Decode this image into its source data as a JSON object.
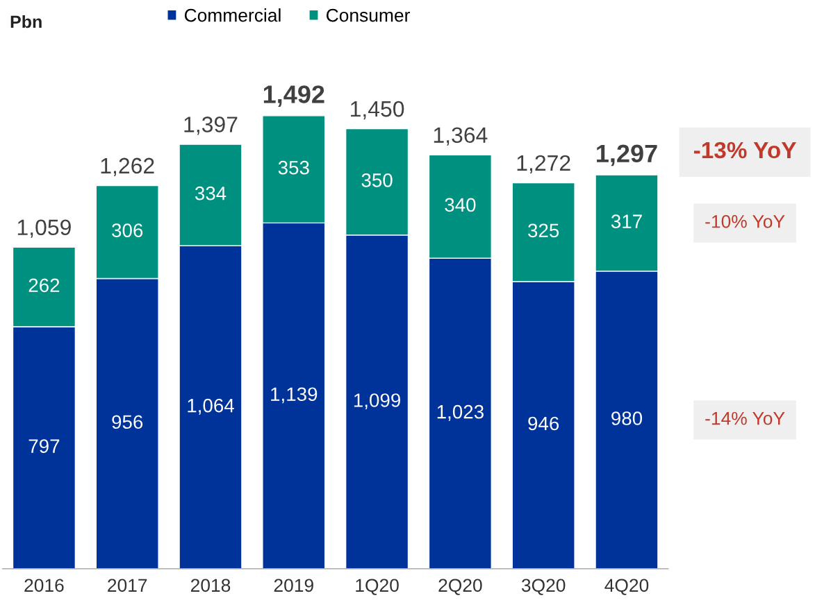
{
  "chart_data": {
    "type": "bar",
    "stacked": true,
    "legend": "top",
    "categories": [
      "2016",
      "2017",
      "2018",
      "2019",
      "1Q20",
      "2Q20",
      "3Q20",
      "4Q20"
    ],
    "series": [
      {
        "name": "Commercial",
        "color": "#003399",
        "values": [
          797,
          956,
          1064,
          1139,
          1099,
          1023,
          946,
          980
        ],
        "value_labels": [
          "797",
          "956",
          "1,064",
          "1,139",
          "1,099",
          "1,023",
          "946",
          "980"
        ]
      },
      {
        "name": "Consumer",
        "color": "#009080",
        "values": [
          262,
          306,
          334,
          353,
          350,
          340,
          325,
          317
        ],
        "value_labels": [
          "262",
          "306",
          "334",
          "353",
          "350",
          "340",
          "325",
          "317"
        ]
      }
    ],
    "totals": [
      "1,059",
      "1,262",
      "1,397",
      "1,492",
      "1,450",
      "1,364",
      "1,272",
      "1,297"
    ],
    "annotations": [
      "Pbn",
      "-13% YoY",
      "-10% YoY",
      "-14% YoY"
    ]
  }
}
